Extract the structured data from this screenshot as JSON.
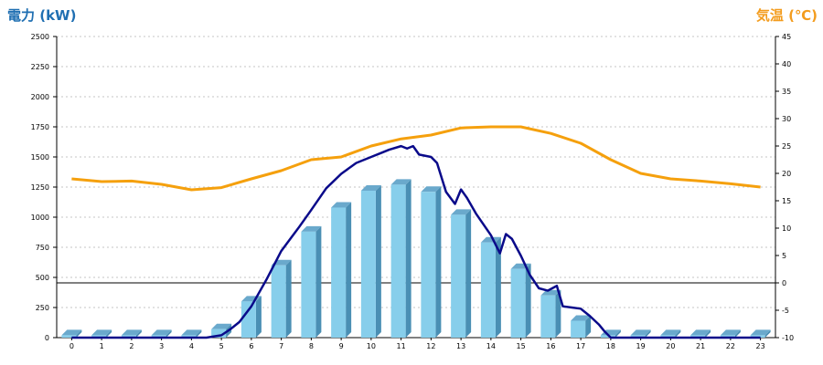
{
  "chart_data": {
    "type": "bar",
    "title_left": "電力 (kW)",
    "title_right": "気温 (℃)",
    "categories": [
      "0",
      "1",
      "2",
      "3",
      "4",
      "5",
      "6",
      "7",
      "8",
      "9",
      "10",
      "11",
      "12",
      "13",
      "14",
      "15",
      "16",
      "17",
      "18",
      "19",
      "20",
      "21",
      "22",
      "23"
    ],
    "left_axis": {
      "ylim": [
        0,
        2500
      ],
      "ticks": [
        "0",
        "250",
        "500",
        "750",
        "1000",
        "1250",
        "1500",
        "1750",
        "2000",
        "2250",
        "2500"
      ],
      "color": "#1f6fb2"
    },
    "right_axis": {
      "ylim": [
        -10,
        45
      ],
      "ticks": [
        "-10",
        "-5",
        "0",
        "5",
        "10",
        "15",
        "20",
        "25",
        "30",
        "35",
        "40",
        "45"
      ],
      "color": "#f39c1e"
    },
    "grid": true,
    "series": [
      {
        "kind": "bar",
        "axis": "left",
        "color": "#87ceeb",
        "values": [
          20,
          20,
          20,
          20,
          20,
          70,
          300,
          600,
          880,
          1080,
          1220,
          1270,
          1210,
          1020,
          790,
          570,
          350,
          140,
          20,
          20,
          20,
          20,
          20,
          20
        ]
      },
      {
        "kind": "line",
        "axis": "left",
        "color": "#0a0a8a",
        "x": [
          0,
          1,
          2,
          3,
          4,
          4.5,
          5,
          5.3,
          5.6,
          6,
          6.5,
          7,
          7.3,
          7.6,
          8,
          8.5,
          9,
          9.5,
          10,
          10.3,
          10.6,
          11,
          11.2,
          11.4,
          11.6,
          12,
          12.2,
          12.5,
          12.8,
          13,
          13.2,
          13.5,
          14,
          14.3,
          14.5,
          14.7,
          15,
          15.3,
          15.6,
          15.9,
          16.2,
          16.4,
          16.7,
          17,
          17.3,
          17.6,
          17.8,
          18,
          19,
          20,
          21,
          22,
          23
        ],
        "y": [
          0,
          0,
          0,
          0,
          0,
          0,
          20,
          70,
          130,
          260,
          480,
          720,
          820,
          920,
          1060,
          1240,
          1360,
          1450,
          1500,
          1530,
          1560,
          1590,
          1570,
          1590,
          1520,
          1500,
          1450,
          1210,
          1110,
          1230,
          1160,
          1030,
          850,
          700,
          860,
          820,
          680,
          520,
          410,
          390,
          430,
          260,
          250,
          240,
          180,
          110,
          50,
          0,
          0,
          0,
          0,
          0,
          0
        ]
      },
      {
        "kind": "line",
        "axis": "right",
        "color": "#f5a00d",
        "values": [
          19,
          18.5,
          18.6,
          18,
          17,
          17.4,
          19,
          20.5,
          22.5,
          23,
          25,
          26.3,
          27,
          28.3,
          28.5,
          28.5,
          27.3,
          25.5,
          22.5,
          20,
          19,
          18.6,
          18.1,
          17.5
        ]
      }
    ]
  }
}
